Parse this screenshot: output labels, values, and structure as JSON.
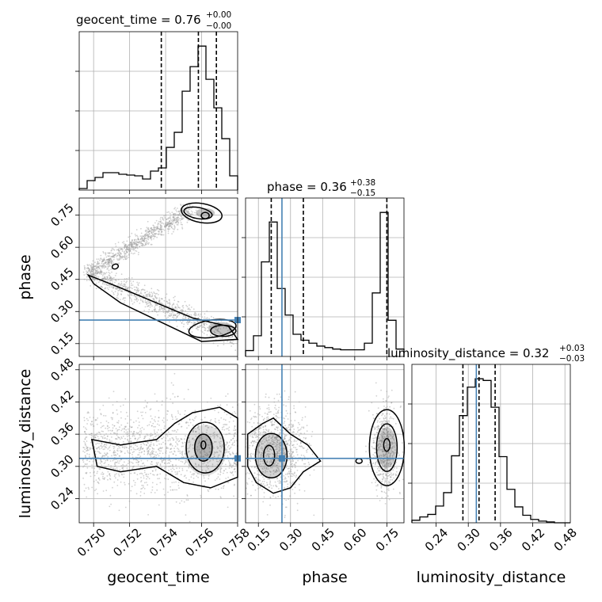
{
  "colors": {
    "truth": "#4682b4",
    "contour": "#000000",
    "grid": "#b0b0b0",
    "cloud": "#9a9a9a"
  },
  "params": [
    {
      "name": "geocent_time",
      "label": "geocent_time",
      "range": [
        0.7492,
        0.758
      ],
      "ticks": [
        0.75,
        0.752,
        0.754,
        0.756,
        0.758
      ],
      "tick_labels": [
        "0.750",
        "0.752",
        "0.754",
        "0.756",
        "0.758"
      ],
      "truth": null
    },
    {
      "name": "phase",
      "label": "phase",
      "range": [
        0.09,
        0.83
      ],
      "ticks": [
        0.15,
        0.3,
        0.45,
        0.6,
        0.75
      ],
      "tick_labels": [
        "0.15",
        "0.30",
        "0.45",
        "0.60",
        "0.75"
      ],
      "truth": 0.26
    },
    {
      "name": "luminosity_distance",
      "label": "luminosity_distance",
      "range": [
        0.195,
        0.49
      ],
      "ticks": [
        0.24,
        0.3,
        0.36,
        0.42,
        0.48
      ],
      "tick_labels": [
        "0.24",
        "0.30",
        "0.36",
        "0.42",
        "0.48"
      ],
      "truth": 0.315
    }
  ],
  "titles": [
    {
      "name": "geocent_time",
      "main": "geocent_time = 0.76",
      "sup": "+0.00",
      "sub": "−0.00"
    },
    {
      "name": "phase",
      "main": "phase = 0.36",
      "sup": "+0.38",
      "sub": "−0.15"
    },
    {
      "name": "luminosity_distance",
      "main": "luminosity_distance = 0.32",
      "sup": "+0.03",
      "sub": "−0.03"
    }
  ],
  "chart_data": [
    {
      "type": "histogram",
      "parameter": "geocent_time",
      "bin_edges": [
        0.7492,
        0.74964,
        0.75008,
        0.75052,
        0.75096,
        0.7514,
        0.75184,
        0.75228,
        0.75272,
        0.75316,
        0.7536,
        0.75404,
        0.75448,
        0.75492,
        0.75536,
        0.7558,
        0.75624,
        0.75668,
        0.75712,
        0.75756,
        0.758
      ],
      "counts": [
        2,
        12,
        16,
        22,
        22,
        20,
        19,
        18,
        14,
        24,
        28,
        54,
        73,
        125,
        156,
        182,
        140,
        104,
        65,
        18
      ],
      "quantiles": [
        0.75376,
        0.75582,
        0.75682
      ]
    },
    {
      "type": "histogram",
      "parameter": "phase",
      "bin_edges": [
        0.09,
        0.127,
        0.164,
        0.201,
        0.238,
        0.275,
        0.312,
        0.349,
        0.386,
        0.423,
        0.46,
        0.497,
        0.534,
        0.571,
        0.608,
        0.645,
        0.682,
        0.719,
        0.756,
        0.793,
        0.83
      ],
      "counts": [
        8,
        28,
        128,
        182,
        92,
        56,
        30,
        22,
        18,
        14,
        12,
        10,
        9,
        9,
        9,
        18,
        86,
        195,
        49,
        10
      ],
      "quantiles": [
        0.21,
        0.36,
        0.75
      ]
    },
    {
      "type": "histogram",
      "parameter": "luminosity_distance",
      "bin_edges": [
        0.195,
        0.20975,
        0.2245,
        0.23925,
        0.254,
        0.26875,
        0.2835,
        0.29825,
        0.313,
        0.32775,
        0.3425,
        0.35725,
        0.372,
        0.38675,
        0.4015,
        0.41625,
        0.431,
        0.44575,
        0.4605,
        0.47525,
        0.49
      ],
      "counts": [
        3,
        7,
        10,
        20,
        36,
        80,
        128,
        162,
        172,
        170,
        138,
        79,
        40,
        19,
        9,
        4,
        2,
        1,
        0,
        0
      ],
      "quantiles": [
        0.29,
        0.32,
        0.35
      ]
    },
    {
      "type": "contour",
      "x_parameter": "geocent_time",
      "y_parameter": "phase"
    },
    {
      "type": "contour",
      "x_parameter": "geocent_time",
      "y_parameter": "luminosity_distance"
    },
    {
      "type": "contour",
      "x_parameter": "phase",
      "y_parameter": "luminosity_distance"
    }
  ]
}
